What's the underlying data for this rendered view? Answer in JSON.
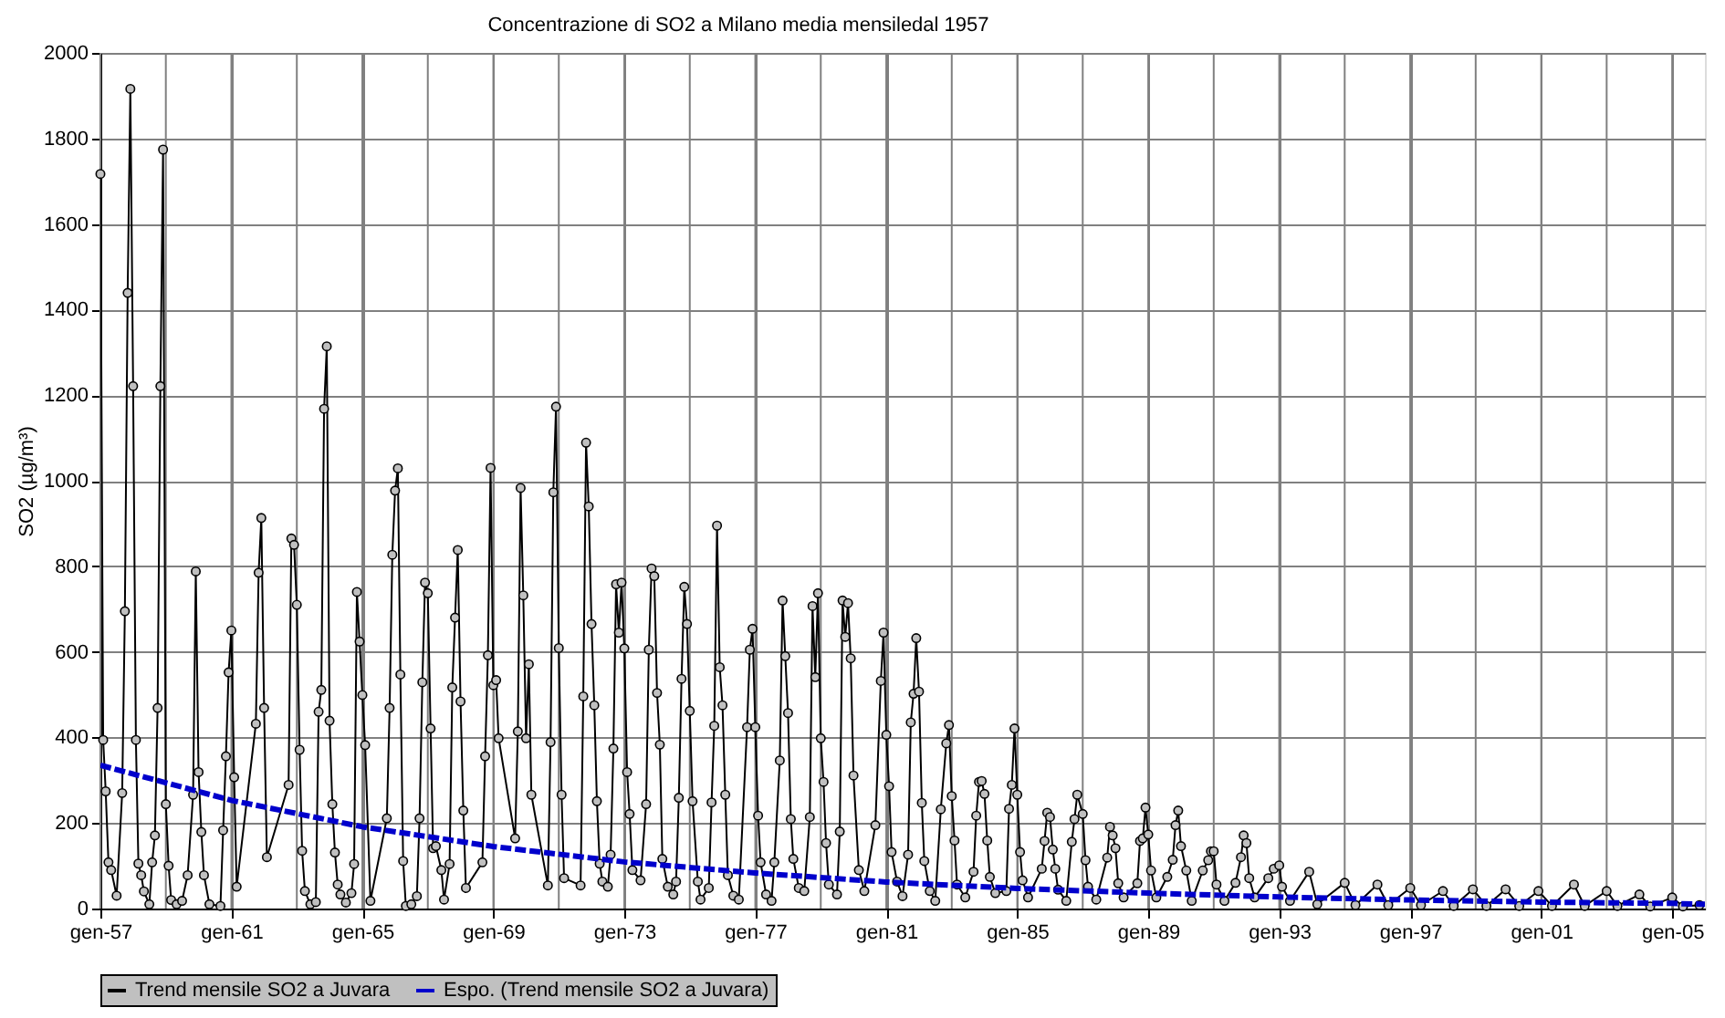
{
  "chart_data": {
    "type": "line",
    "title": "Concentrazione di SO2 a Milano media mensiledal 1957",
    "ylabel": "SO2 (µg/m³)",
    "xlim": [
      "1957-01",
      "2006-01"
    ],
    "ylim": [
      0,
      2000
    ],
    "yticks": [
      0,
      200,
      400,
      600,
      800,
      1000,
      1200,
      1400,
      1600,
      1800,
      2000
    ],
    "xticks": [
      {
        "value": "1957-01",
        "label": "gen-57"
      },
      {
        "value": "1959-01",
        "label": null
      },
      {
        "value": "1961-01",
        "label": "gen-61"
      },
      {
        "value": "1963-01",
        "label": null
      },
      {
        "value": "1965-01",
        "label": "gen-65"
      },
      {
        "value": "1967-01",
        "label": null
      },
      {
        "value": "1969-01",
        "label": "gen-69"
      },
      {
        "value": "1971-01",
        "label": null
      },
      {
        "value": "1973-01",
        "label": "gen-73"
      },
      {
        "value": "1975-01",
        "label": null
      },
      {
        "value": "1977-01",
        "label": "gen-77"
      },
      {
        "value": "1979-01",
        "label": null
      },
      {
        "value": "1981-01",
        "label": "gen-81"
      },
      {
        "value": "1983-01",
        "label": null
      },
      {
        "value": "1985-01",
        "label": "gen-85"
      },
      {
        "value": "1987-01",
        "label": null
      },
      {
        "value": "1989-01",
        "label": "gen-89"
      },
      {
        "value": "1991-01",
        "label": null
      },
      {
        "value": "1993-01",
        "label": "gen-93"
      },
      {
        "value": "1995-01",
        "label": null
      },
      {
        "value": "1997-01",
        "label": "gen-97"
      },
      {
        "value": "1999-01",
        "label": null
      },
      {
        "value": "2001-01",
        "label": "gen-01"
      },
      {
        "value": "2003-01",
        "label": null
      },
      {
        "value": "2005-01",
        "label": "gen-05"
      }
    ],
    "grid": true,
    "legend": "bottom",
    "series": [
      {
        "name": "Trend mensile SO2 a Juvara",
        "color": "#000000",
        "marker": "circle",
        "line_style": "solid",
        "x": [
          "1957-01",
          "1957-02",
          "1957-03",
          "1957-04",
          "1957-05",
          "1957-07",
          "1957-09",
          "1957-10",
          "1957-11",
          "1957-12",
          "1958-01",
          "1958-02",
          "1958-03",
          "1958-04",
          "1958-05",
          "1958-07",
          "1958-08",
          "1958-09",
          "1958-10",
          "1958-11",
          "1958-12",
          "1959-01",
          "1959-02",
          "1959-03",
          "1959-05",
          "1959-07",
          "1959-09",
          "1959-11",
          "1959-12",
          "1960-01",
          "1960-02",
          "1960-03",
          "1960-05",
          "1960-09",
          "1960-10",
          "1960-11",
          "1960-12",
          "1961-01",
          "1961-02",
          "1961-03",
          "1961-10",
          "1961-11",
          "1961-12",
          "1962-01",
          "1962-02",
          "1962-10",
          "1962-11",
          "1962-12",
          "1963-01",
          "1963-02",
          "1963-03",
          "1963-04",
          "1963-06",
          "1963-08",
          "1963-09",
          "1963-10",
          "1963-11",
          "1963-12",
          "1964-01",
          "1964-02",
          "1964-03",
          "1964-04",
          "1964-05",
          "1964-07",
          "1964-09",
          "1964-10",
          "1964-11",
          "1964-12",
          "1965-01",
          "1965-02",
          "1965-04",
          "1965-10",
          "1965-11",
          "1965-12",
          "1966-01",
          "1966-02",
          "1966-03",
          "1966-04",
          "1966-05",
          "1966-07",
          "1966-09",
          "1966-10",
          "1966-11",
          "1966-12",
          "1967-01",
          "1967-02",
          "1967-03",
          "1967-04",
          "1967-06",
          "1967-07",
          "1967-09",
          "1967-10",
          "1967-11",
          "1967-12",
          "1968-01",
          "1968-02",
          "1968-03",
          "1968-09",
          "1968-10",
          "1968-11",
          "1968-12",
          "1969-01",
          "1969-02",
          "1969-03",
          "1969-09",
          "1969-10",
          "1969-11",
          "1969-12",
          "1970-01",
          "1970-02",
          "1970-03",
          "1970-09",
          "1970-10",
          "1970-11",
          "1970-12",
          "1971-01",
          "1971-02",
          "1971-03",
          "1971-09",
          "1971-10",
          "1971-11",
          "1971-12",
          "1972-01",
          "1972-02",
          "1972-03",
          "1972-04",
          "1972-05",
          "1972-07",
          "1972-08",
          "1972-09",
          "1972-10",
          "1972-11",
          "1972-12",
          "1973-01",
          "1973-02",
          "1973-03",
          "1973-04",
          "1973-07",
          "1973-09",
          "1973-10",
          "1973-11",
          "1973-12",
          "1974-01",
          "1974-02",
          "1974-03",
          "1974-05",
          "1974-07",
          "1974-08",
          "1974-09",
          "1974-10",
          "1974-11",
          "1974-12",
          "1975-01",
          "1975-02",
          "1975-04",
          "1975-05",
          "1975-08",
          "1975-09",
          "1975-10",
          "1975-11",
          "1975-12",
          "1976-01",
          "1976-02",
          "1976-03",
          "1976-05",
          "1976-07",
          "1976-10",
          "1976-11",
          "1976-12",
          "1977-01",
          "1977-02",
          "1977-03",
          "1977-05",
          "1977-07",
          "1977-08",
          "1977-10",
          "1977-11",
          "1977-12",
          "1978-01",
          "1978-02",
          "1978-03",
          "1978-05",
          "1978-07",
          "1978-09",
          "1978-10",
          "1978-11",
          "1978-12",
          "1979-01",
          "1979-02",
          "1979-03",
          "1979-04",
          "1979-07",
          "1979-08",
          "1979-09",
          "1979-10",
          "1979-11",
          "1979-12",
          "1980-01",
          "1980-03",
          "1980-05",
          "1980-09",
          "1980-11",
          "1980-12",
          "1981-01",
          "1981-02",
          "1981-03",
          "1981-05",
          "1981-07",
          "1981-09",
          "1981-10",
          "1981-11",
          "1981-12",
          "1982-01",
          "1982-02",
          "1982-03",
          "1982-05",
          "1982-07",
          "1982-09",
          "1982-11",
          "1982-12",
          "1983-01",
          "1983-02",
          "1983-03",
          "1983-06",
          "1983-09",
          "1983-10",
          "1983-11",
          "1983-12",
          "1984-01",
          "1984-02",
          "1984-03",
          "1984-05",
          "1984-09",
          "1984-10",
          "1984-11",
          "1984-12",
          "1985-01",
          "1985-02",
          "1985-03",
          "1985-05",
          "1985-10",
          "1985-11",
          "1985-12",
          "1986-01",
          "1986-02",
          "1986-03",
          "1986-04",
          "1986-07",
          "1986-09",
          "1986-10",
          "1986-11",
          "1987-01",
          "1987-02",
          "1987-03",
          "1987-06",
          "1987-10",
          "1987-11",
          "1987-12",
          "1988-01",
          "1988-02",
          "1988-04",
          "1988-09",
          "1988-10",
          "1988-11",
          "1988-12",
          "1989-01",
          "1989-02",
          "1989-04",
          "1989-08",
          "1989-10",
          "1989-11",
          "1989-12",
          "1990-01",
          "1990-03",
          "1990-05",
          "1990-09",
          "1990-11",
          "1990-12",
          "1991-01",
          "1991-02",
          "1991-05",
          "1991-09",
          "1991-11",
          "1991-12",
          "1992-01",
          "1992-02",
          "1992-04",
          "1992-09",
          "1992-11",
          "1993-01",
          "1993-02",
          "1993-05",
          "1993-12",
          "1994-03",
          "1995-01",
          "1995-05",
          "1996-01",
          "1996-05",
          "1997-01",
          "1997-05",
          "1998-01",
          "1998-05",
          "1998-12",
          "1999-05",
          "1999-12",
          "2000-05",
          "2000-12",
          "2001-05",
          "2002-01",
          "2002-05",
          "2003-01",
          "2003-05",
          "2004-01",
          "2004-05",
          "2005-01",
          "2005-05",
          "2005-11"
        ],
        "values": [
          1717,
          394,
          274,
          108,
          90,
          30,
          270,
          695,
          1439,
          1916,
          1221,
          394,
          105,
          78,
          40,
          10,
          108,
          171,
          469,
          1221,
          1774,
          244,
          100,
          20,
          10,
          18,
          78,
          266,
          788,
          319,
          179,
          78,
          10,
          6,
          183,
          356,
          552,
          650,
          307,
          51,
          432,
          785,
          913,
          469,
          120,
          289,
          865,
          850,
          710,
          371,
          135,
          41,
          10,
          15,
          460,
          511,
          1168,
          1314,
          439,
          244,
          131,
          56,
          33,
          14,
          36,
          104,
          740,
          624,
          499,
          382,
          18,
          211,
          469,
          827,
          977,
          1029,
          547,
          111,
          6,
          10,
          29,
          211,
          529,
          762,
          737,
          421,
          141,
          146,
          90,
          21,
          104,
          517,
          680,
          838,
          484,
          229,
          48,
          108,
          356,
          592,
          1030,
          522,
          534,
          398,
          164,
          414,
          983,
          732,
          398,
          571,
          266,
          54,
          389,
          973,
          1173,
          609,
          266,
          71,
          54,
          496,
          1089,
          940,
          665,
          475,
          251,
          105,
          63,
          51,
          126,
          374,
          758,
          645,
          762,
          608,
          319,
          221,
          90,
          66,
          244,
          605,
          795,
          777,
          504,
          383,
          116,
          51,
          33,
          63,
          259,
          537,
          752,
          665,
          462,
          251,
          63,
          21,
          48,
          248,
          427,
          895,
          564,
          475,
          266,
          78,
          30,
          21,
          424,
          605,
          654,
          424,
          217,
          108,
          33,
          18,
          108,
          346,
          720,
          590,
          457,
          209,
          116,
          48,
          41,
          214,
          707,
          541,
          737,
          398,
          296,
          153,
          56,
          33,
          180,
          720,
          635,
          714,
          585,
          311,
          90,
          41,
          195,
          532,
          645,
          406,
          286,
          132,
          63,
          29,
          126,
          435,
          502,
          632,
          507,
          247,
          111,
          41,
          18,
          232,
          386,
          429,
          263,
          159,
          56,
          26,
          86,
          217,
          296,
          298,
          268,
          159,
          74,
          36,
          41,
          233,
          289,
          421,
          266,
          132,
          66,
          26,
          93,
          158,
          224,
          214,
          138,
          93,
          44,
          18,
          156,
          209,
          266,
          221,
          113,
          51,
          21,
          119,
          191,
          171,
          141,
          59,
          26,
          59,
          158,
          164,
          236,
          173,
          89,
          26,
          74,
          114,
          195,
          229,
          146,
          89,
          18,
          89,
          113,
          134,
          134,
          56,
          18,
          60,
          120,
          171,
          153,
          71,
          26,
          71,
          93,
          101,
          51,
          18,
          86,
          10,
          60,
          8,
          56,
          8,
          48,
          8,
          41,
          6,
          45,
          6,
          45,
          6,
          41,
          6,
          56,
          6,
          41,
          6,
          33,
          5,
          26,
          5,
          8
        ]
      },
      {
        "name": "Espo. (Trend mensile SO2 a Juvara)",
        "color": "#0000cc",
        "marker": "none",
        "line_style": "dashed",
        "x": [
          "1957-01",
          "1961-01",
          "1965-01",
          "1969-01",
          "1973-01",
          "1977-01",
          "1981-01",
          "1985-01",
          "1989-01",
          "1993-01",
          "1997-01",
          "2001-01",
          "2005-01",
          "2006-01"
        ],
        "values": [
          335,
          253,
          191,
          145,
          109,
          83,
          62,
          47,
          36,
          27,
          20,
          15,
          12,
          10
        ]
      }
    ]
  }
}
